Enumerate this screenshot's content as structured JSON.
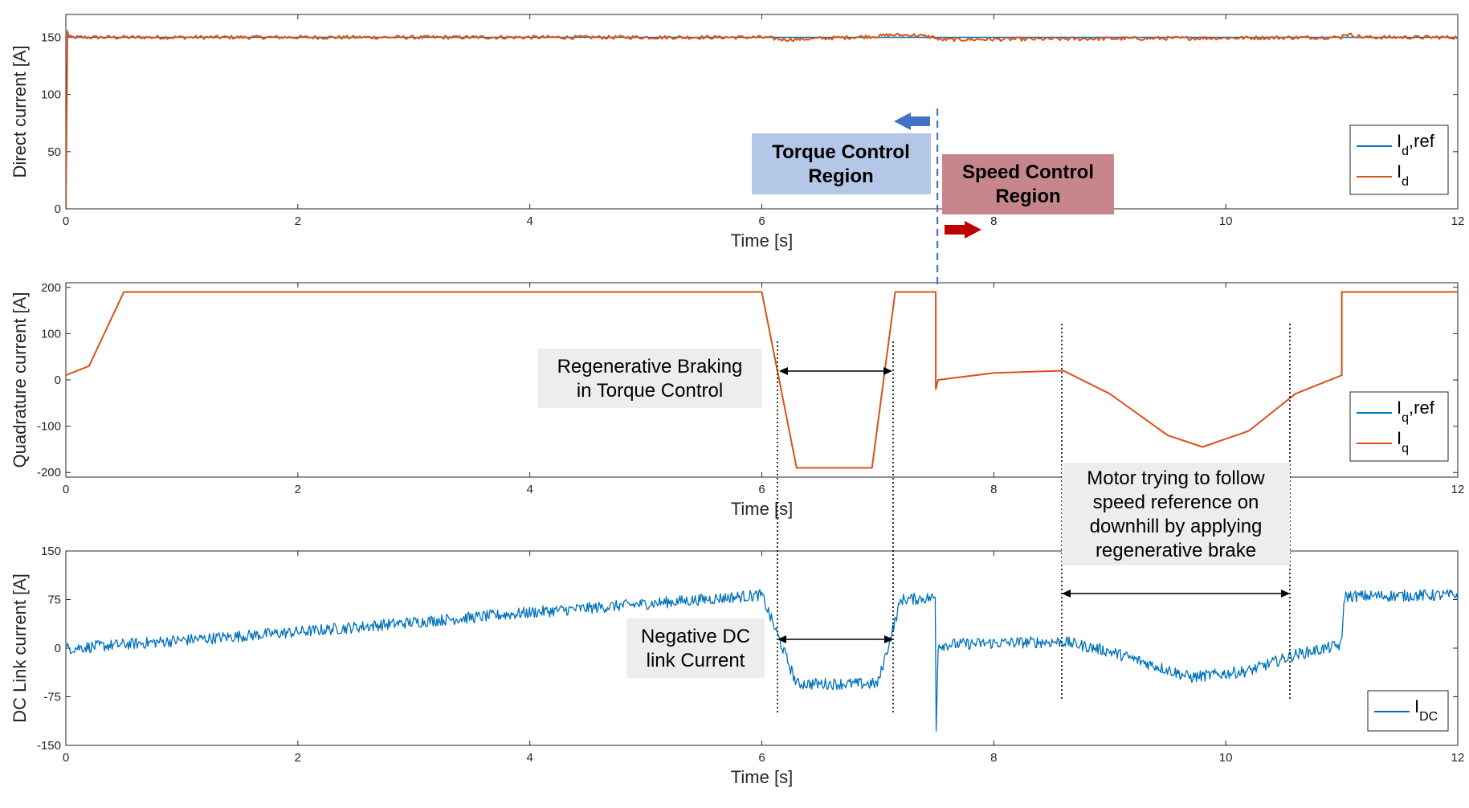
{
  "chart_data": [
    {
      "type": "line",
      "xlabel": "Time [s]",
      "ylabel": "Direct current [A]",
      "xlim": [
        0,
        12
      ],
      "ylim": [
        0,
        170
      ],
      "xticks": [
        0,
        2,
        4,
        6,
        8,
        10,
        12
      ],
      "yticks": [
        0,
        50,
        100,
        150
      ],
      "legend": "right",
      "series": [
        {
          "name": "I",
          "subscript": "d",
          "suffix": ",ref",
          "color": "#0072BD",
          "x": [
            0,
            12
          ],
          "y": [
            150,
            150
          ]
        },
        {
          "name": "I",
          "subscript": "d",
          "suffix": "",
          "color": "#D95319",
          "x": [
            0,
            0.005,
            0.02,
            6.0,
            6.2,
            6.5,
            7.0,
            7.1,
            7.3,
            7.5,
            7.52,
            11.0,
            11.02,
            11.2,
            12
          ],
          "y": [
            0,
            165,
            150,
            150,
            148,
            149,
            151,
            152,
            152,
            150,
            148,
            150,
            153,
            150,
            150
          ]
        }
      ]
    },
    {
      "type": "line",
      "xlabel": "Time [s]",
      "ylabel": "Quadrature current [A]",
      "xlim": [
        0,
        12
      ],
      "ylim": [
        -210,
        210
      ],
      "xticks": [
        0,
        2,
        4,
        6,
        8,
        10,
        12
      ],
      "yticks": [
        -200,
        -100,
        0,
        100,
        200
      ],
      "legend": "right",
      "series": [
        {
          "name": "I",
          "subscript": "q",
          "suffix": ",ref",
          "color": "#0072BD",
          "x": [
            0,
            0.2,
            0.5,
            6.0,
            6.3,
            6.95,
            7.15,
            7.5,
            7.5,
            7.52,
            8.0,
            8.6,
            9.0,
            9.5,
            9.8,
            10.2,
            10.6,
            11.0,
            11.0,
            12
          ],
          "y": [
            10,
            30,
            190,
            190,
            -190,
            -190,
            190,
            190,
            -20,
            0,
            15,
            20,
            -30,
            -120,
            -145,
            -110,
            -30,
            10,
            190,
            190
          ]
        },
        {
          "name": "I",
          "subscript": "q",
          "suffix": "",
          "color": "#D95319",
          "x": [
            0,
            0.2,
            0.5,
            6.0,
            6.3,
            6.95,
            7.15,
            7.5,
            7.5,
            7.52,
            8.0,
            8.6,
            9.0,
            9.5,
            9.8,
            10.2,
            10.6,
            11.0,
            11.0,
            12
          ],
          "y": [
            10,
            30,
            190,
            190,
            -190,
            -190,
            190,
            190,
            -20,
            0,
            15,
            20,
            -30,
            -120,
            -145,
            -110,
            -30,
            10,
            190,
            190
          ]
        }
      ]
    },
    {
      "type": "line",
      "xlabel": "Time [s]",
      "ylabel": "DC Link current [A]",
      "xlim": [
        0,
        12
      ],
      "ylim": [
        -150,
        150
      ],
      "xticks": [
        0,
        2,
        4,
        6,
        8,
        10,
        12
      ],
      "yticks": [
        -150,
        -75,
        0,
        75,
        150
      ],
      "legend": "bottom-right",
      "series": [
        {
          "name": "I",
          "subscript": "DC",
          "suffix": "",
          "color": "#0072BD",
          "x": [
            0,
            0.05,
            2.0,
            4.0,
            6.0,
            6.3,
            7.0,
            7.2,
            7.5,
            7.5,
            7.52,
            8.0,
            8.6,
            9.0,
            9.7,
            10.2,
            10.6,
            11.0,
            11.02,
            12
          ],
          "y": [
            0,
            0,
            25,
            55,
            82,
            -55,
            -55,
            75,
            78,
            -150,
            5,
            8,
            10,
            -5,
            -45,
            -35,
            -10,
            5,
            80,
            82
          ],
          "noise": 9
        }
      ]
    }
  ],
  "annotations": {
    "torque_region": "Torque Control\nRegion",
    "speed_region": "Speed Control\nRegion",
    "regen_torque": "Regenerative Braking\nin Torque Control",
    "motor_downhill": "Motor trying to follow\nspeed reference on\ndownhill by applying\nregenerative brake",
    "negative_dc": "Negative DC\nlink Current"
  },
  "colors": {
    "torque_box": "#B4C7E7",
    "speed_box": "#C6868C",
    "note_box": "#EDEDED",
    "blue_arrow": "#4472C4",
    "red_arrow": "#C00000",
    "divider": "#4472C4"
  }
}
